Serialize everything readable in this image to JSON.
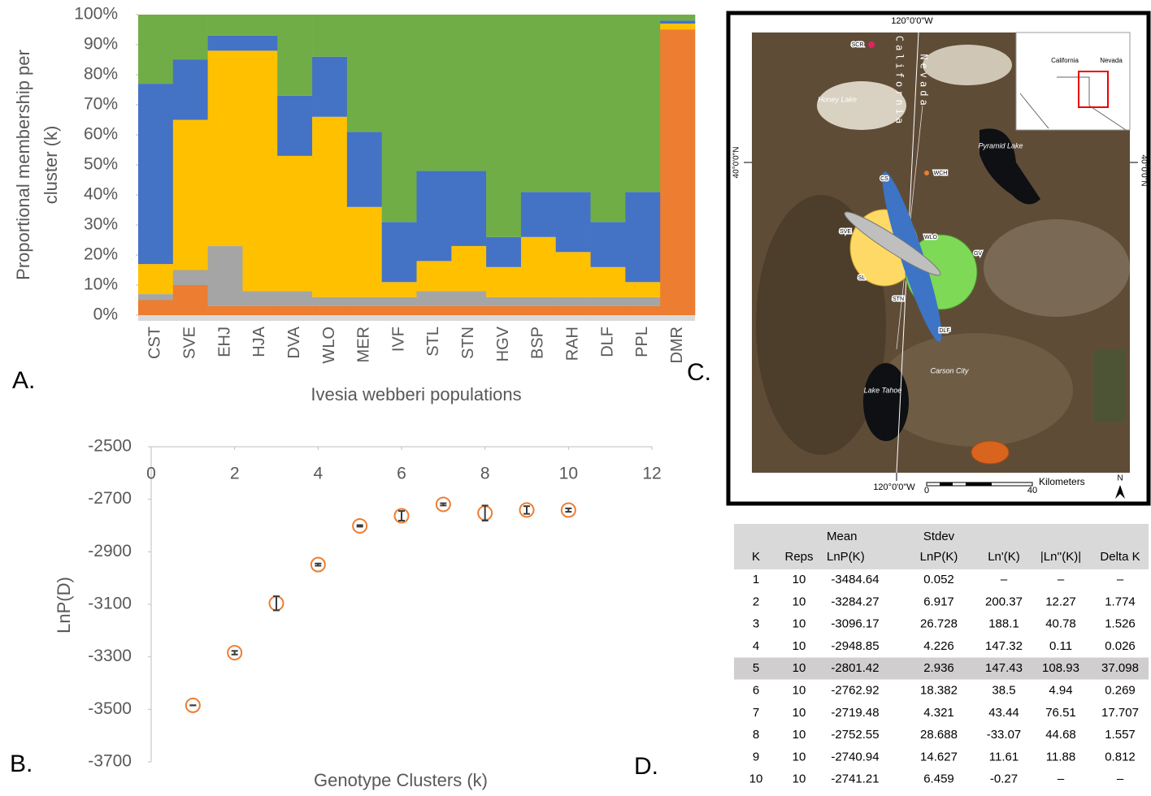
{
  "chart_data": [
    {
      "type": "bar",
      "stacked": true,
      "panel_label": "A.",
      "ylabel": [
        "Proportional membership per",
        "cluster (k)"
      ],
      "xlabel": "Ivesia webberi populations",
      "categories": [
        "CST",
        "SVE",
        "EHJ",
        "HJA",
        "DVA",
        "WLO",
        "MER",
        "IVF",
        "STL",
        "STN",
        "HGV",
        "BSP",
        "RAH",
        "DLF",
        "PPL",
        "DMR"
      ],
      "series": [
        {
          "color": "#ed7d31",
          "values": [
            5,
            10,
            3,
            3,
            3,
            3,
            3,
            3,
            3,
            3,
            3,
            3,
            3,
            3,
            3,
            95
          ]
        },
        {
          "color": "#a5a5a5",
          "values": [
            2,
            5,
            20,
            5,
            5,
            3,
            3,
            3,
            5,
            5,
            3,
            3,
            3,
            3,
            3,
            0
          ]
        },
        {
          "color": "#ffc000",
          "values": [
            10,
            50,
            65,
            80,
            45,
            60,
            30,
            5,
            10,
            15,
            10,
            20,
            15,
            10,
            5,
            2
          ]
        },
        {
          "color": "#4472c4",
          "values": [
            60,
            20,
            5,
            5,
            20,
            20,
            25,
            20,
            30,
            25,
            10,
            15,
            20,
            15,
            30,
            1
          ]
        },
        {
          "color": "#70ad47",
          "values": [
            23,
            15,
            7,
            7,
            27,
            14,
            39,
            69,
            52,
            52,
            74,
            59,
            59,
            69,
            59,
            2
          ]
        }
      ],
      "ylim": [
        0,
        100
      ],
      "yticks": [
        {
          "value": 0,
          "label": "0%"
        },
        {
          "value": 10,
          "label": "10%"
        },
        {
          "value": 20,
          "label": "20%"
        },
        {
          "value": 30,
          "label": "30%"
        },
        {
          "value": 40,
          "label": "40%"
        },
        {
          "value": 50,
          "label": "50%"
        },
        {
          "value": 60,
          "label": "60%"
        },
        {
          "value": 70,
          "label": "70%"
        },
        {
          "value": 80,
          "label": "80%"
        },
        {
          "value": 90,
          "label": "90%"
        },
        {
          "value": 100,
          "label": "100%"
        }
      ]
    },
    {
      "type": "scatter",
      "panel_label": "B.",
      "ylabel": "LnP(D)",
      "xlabel": "Genotype Clusters (k)",
      "x": [
        1,
        2,
        3,
        4,
        5,
        6,
        7,
        8,
        9,
        10
      ],
      "series": [
        {
          "color": "#ed7d31",
          "values": [
            -3484.64,
            -3284.27,
            -3096.17,
            -2948.85,
            -2801.42,
            -2762.92,
            -2719.48,
            -2752.55,
            -2740.94,
            -2741.21
          ],
          "errors": [
            0.052,
            6.917,
            26.728,
            4.226,
            2.936,
            18.382,
            4.321,
            28.688,
            14.627,
            6.459
          ]
        }
      ],
      "xlim": [
        0,
        12
      ],
      "xticks": [
        0,
        2,
        4,
        6,
        8,
        10,
        12
      ],
      "ylim": [
        -3700,
        -2500
      ],
      "yticks": [
        -2500,
        -2700,
        -2900,
        -3100,
        -3300,
        -3500,
        -3700
      ]
    }
  ],
  "map": {
    "panel_label": "C.",
    "meridian_top": "120°0'0\"W",
    "meridian_bottom": "120°0'0\"W",
    "parallel_left": "40°0'0\"N",
    "parallel_right": "40°0'0\"N",
    "states": [
      "Nevada",
      "California"
    ],
    "inset_labels": [
      "California",
      "Nevada"
    ],
    "sites": [
      "SCR",
      "CS",
      "WCH",
      "SVE",
      "WLO",
      "GV",
      "SL",
      "STN",
      "DLF"
    ],
    "features": [
      "Honey Lake",
      "Pyramid Lake",
      "Lake Tahoe",
      "Carson City"
    ],
    "scale_unit": "Kilometers",
    "scale_ticks": [
      "0",
      "40"
    ],
    "north": "N"
  },
  "table": {
    "panel_label": "D.",
    "header": [
      [
        "K"
      ],
      [
        "Reps"
      ],
      [
        "Mean",
        "LnP(K)"
      ],
      [
        "Stdev",
        "LnP(K)"
      ],
      [
        "Ln'(K)"
      ],
      [
        "|Ln''(K)|"
      ],
      [
        "Delta K"
      ]
    ],
    "rows": [
      [
        "1",
        "10",
        "-3484.64",
        "0.052",
        "–",
        "–",
        "–"
      ],
      [
        "2",
        "10",
        "-3284.27",
        "6.917",
        "200.37",
        "12.27",
        "1.774"
      ],
      [
        "3",
        "10",
        "-3096.17",
        "26.728",
        "188.1",
        "40.78",
        "1.526"
      ],
      [
        "4",
        "10",
        "-2948.85",
        "4.226",
        "147.32",
        "0.11",
        "0.026"
      ],
      [
        "5",
        "10",
        "-2801.42",
        "2.936",
        "147.43",
        "108.93",
        "37.098"
      ],
      [
        "6",
        "10",
        "-2762.92",
        "18.382",
        "38.5",
        "4.94",
        "0.269"
      ],
      [
        "7",
        "10",
        "-2719.48",
        "4.321",
        "43.44",
        "76.51",
        "17.707"
      ],
      [
        "8",
        "10",
        "-2752.55",
        "28.688",
        "-33.07",
        "44.68",
        "1.557"
      ],
      [
        "9",
        "10",
        "-2740.94",
        "14.627",
        "11.61",
        "11.88",
        "0.812"
      ],
      [
        "10",
        "10",
        "-2741.21",
        "6.459",
        "-0.27",
        "–",
        "–"
      ]
    ],
    "highlight_row": 4
  }
}
